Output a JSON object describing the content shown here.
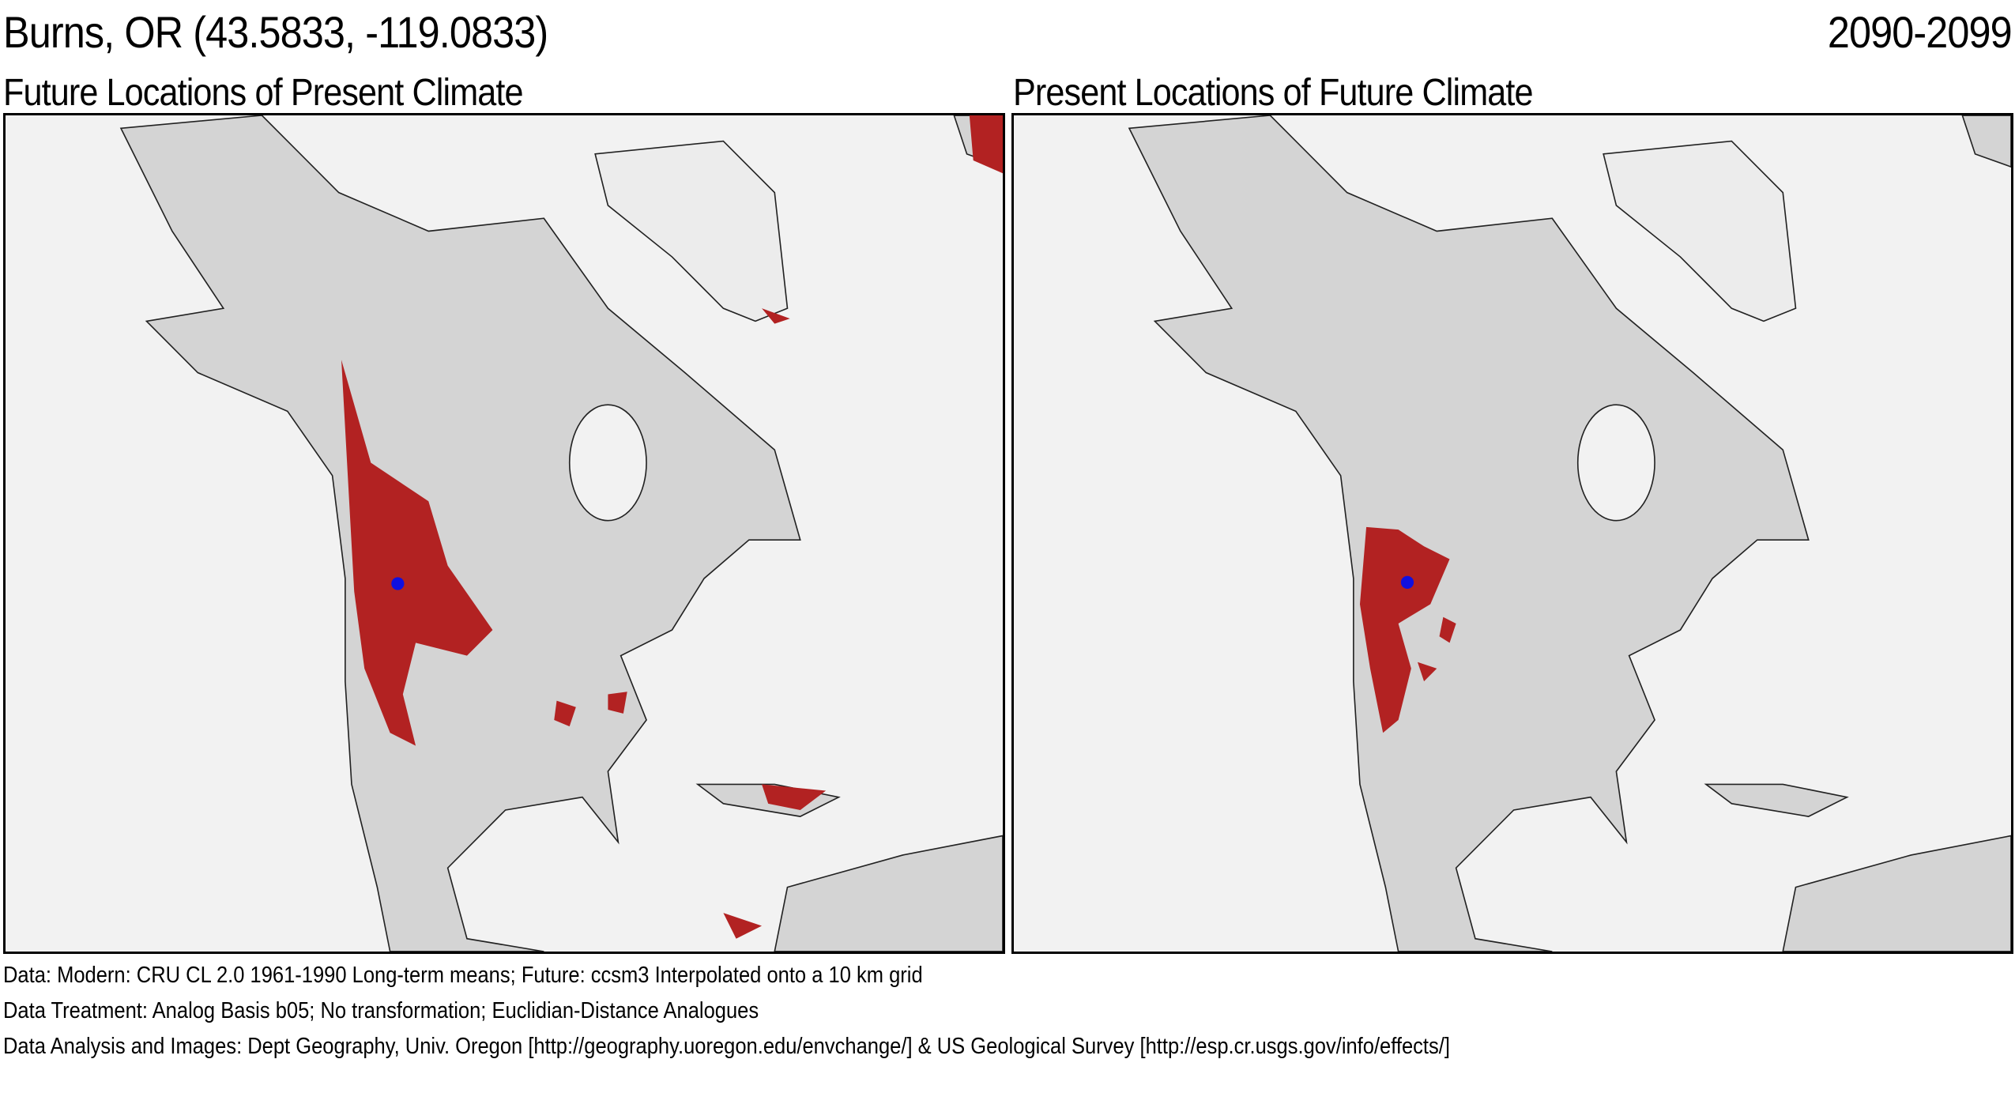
{
  "header": {
    "location": "Burns, OR  (43.5833, -119.0833)",
    "period": "2090-2099"
  },
  "panels": [
    {
      "title": "Future Locations of Present Climate"
    },
    {
      "title": "Present Locations of Future Climate"
    }
  ],
  "colors": {
    "analog": "#b22222",
    "site_marker": "#1010e0",
    "land": "#d4d4d4",
    "water": "#f2f2f2"
  },
  "site": {
    "lat": 43.5833,
    "lon": -119.0833
  },
  "footer": {
    "data": "Data:  Modern: CRU CL 2.0 1961-1990 Long-term means; Future: ccsm3 Interpolated onto a 10 km grid",
    "treatment": "Data Treatment:  Analog Basis b05; No transformation; Euclidian-Distance Analogues",
    "analysis": "Data Analysis and Images:  Dept Geography, Univ. Oregon [http://geography.uoregon.edu/envchange/] & US Geological Survey [http://esp.cr.usgs.gov/info/effects/]"
  }
}
